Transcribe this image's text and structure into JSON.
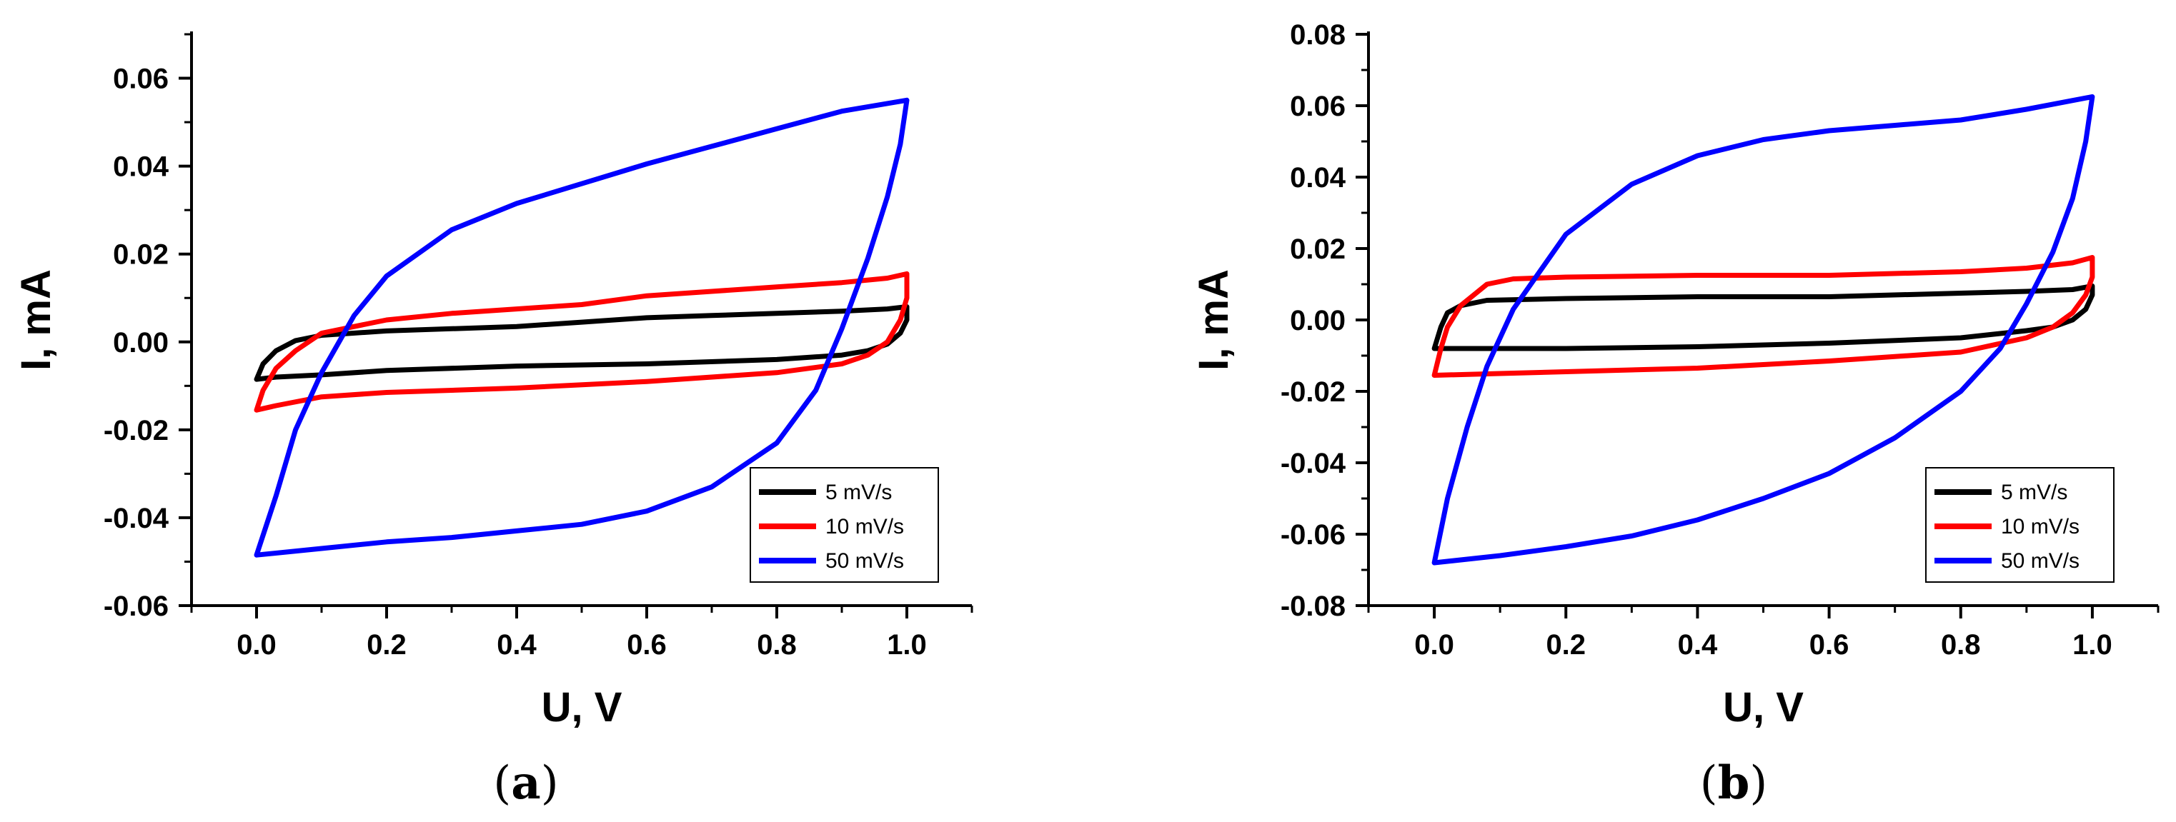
{
  "chart_data": [
    {
      "type": "line",
      "subplot": "a",
      "caption_prefix": "(",
      "caption_letter": "a",
      "caption_suffix": ")",
      "xlabel": "U, V",
      "ylabel": "I, mA",
      "xlim": [
        -0.1,
        1.1
      ],
      "ylim": [
        -0.06,
        0.07
      ],
      "x_ticks": [
        0.0,
        0.2,
        0.4,
        0.6,
        0.8,
        1.0
      ],
      "x_tick_labels": [
        "0.0",
        "0.2",
        "0.4",
        "0.6",
        "0.8",
        "1.0"
      ],
      "y_ticks": [
        -0.06,
        -0.04,
        -0.02,
        0.0,
        0.02,
        0.04,
        0.06
      ],
      "y_tick_labels": [
        "-0.06",
        "-0.04",
        "-0.02",
        "0.00",
        "0.02",
        "0.04",
        "0.06"
      ],
      "legend_position": "bottom-right",
      "series": [
        {
          "name": "5 mV/s",
          "color": "#000000",
          "points": [
            [
              0.0,
              -0.0085
            ],
            [
              0.01,
              -0.005
            ],
            [
              0.03,
              -0.002
            ],
            [
              0.06,
              0.0003
            ],
            [
              0.1,
              0.0015
            ],
            [
              0.2,
              0.0025
            ],
            [
              0.3,
              0.003
            ],
            [
              0.4,
              0.0035
            ],
            [
              0.5,
              0.0045
            ],
            [
              0.6,
              0.0055
            ],
            [
              0.7,
              0.006
            ],
            [
              0.8,
              0.0065
            ],
            [
              0.9,
              0.007
            ],
            [
              0.97,
              0.0075
            ],
            [
              1.0,
              0.008
            ],
            [
              1.0,
              0.005
            ],
            [
              0.99,
              0.002
            ],
            [
              0.97,
              -0.0005
            ],
            [
              0.94,
              -0.002
            ],
            [
              0.9,
              -0.003
            ],
            [
              0.8,
              -0.004
            ],
            [
              0.6,
              -0.005
            ],
            [
              0.4,
              -0.0055
            ],
            [
              0.2,
              -0.0065
            ],
            [
              0.1,
              -0.0075
            ],
            [
              0.03,
              -0.008
            ],
            [
              0.0,
              -0.0085
            ]
          ]
        },
        {
          "name": "10 mV/s",
          "color": "#ff0000",
          "points": [
            [
              0.0,
              -0.0155
            ],
            [
              0.01,
              -0.011
            ],
            [
              0.03,
              -0.006
            ],
            [
              0.06,
              -0.002
            ],
            [
              0.1,
              0.002
            ],
            [
              0.2,
              0.005
            ],
            [
              0.3,
              0.0065
            ],
            [
              0.4,
              0.0075
            ],
            [
              0.5,
              0.0085
            ],
            [
              0.6,
              0.0105
            ],
            [
              0.7,
              0.0115
            ],
            [
              0.8,
              0.0125
            ],
            [
              0.9,
              0.0135
            ],
            [
              0.97,
              0.0145
            ],
            [
              1.0,
              0.0155
            ],
            [
              1.0,
              0.01
            ],
            [
              0.99,
              0.005
            ],
            [
              0.97,
              0.0
            ],
            [
              0.94,
              -0.003
            ],
            [
              0.9,
              -0.005
            ],
            [
              0.8,
              -0.007
            ],
            [
              0.6,
              -0.009
            ],
            [
              0.4,
              -0.0105
            ],
            [
              0.2,
              -0.0115
            ],
            [
              0.1,
              -0.0125
            ],
            [
              0.03,
              -0.0145
            ],
            [
              0.0,
              -0.0155
            ]
          ]
        },
        {
          "name": "50 mV/s",
          "color": "#0000ff",
          "points": [
            [
              0.0,
              -0.0485
            ],
            [
              0.03,
              -0.035
            ],
            [
              0.06,
              -0.02
            ],
            [
              0.1,
              -0.007
            ],
            [
              0.15,
              0.006
            ],
            [
              0.2,
              0.015
            ],
            [
              0.3,
              0.0255
            ],
            [
              0.4,
              0.0315
            ],
            [
              0.5,
              0.036
            ],
            [
              0.6,
              0.0405
            ],
            [
              0.7,
              0.0445
            ],
            [
              0.8,
              0.0485
            ],
            [
              0.9,
              0.0525
            ],
            [
              1.0,
              0.055
            ],
            [
              0.99,
              0.045
            ],
            [
              0.97,
              0.033
            ],
            [
              0.94,
              0.019
            ],
            [
              0.9,
              0.003
            ],
            [
              0.86,
              -0.011
            ],
            [
              0.8,
              -0.023
            ],
            [
              0.7,
              -0.033
            ],
            [
              0.6,
              -0.0385
            ],
            [
              0.5,
              -0.0415
            ],
            [
              0.4,
              -0.043
            ],
            [
              0.3,
              -0.0445
            ],
            [
              0.2,
              -0.0455
            ],
            [
              0.1,
              -0.047
            ],
            [
              0.0,
              -0.0485
            ]
          ]
        }
      ]
    },
    {
      "type": "line",
      "subplot": "b",
      "caption_prefix": "(",
      "caption_letter": "b",
      "caption_suffix": ")",
      "xlabel": "U, V",
      "ylabel": "I, mA",
      "xlim": [
        -0.1,
        1.1
      ],
      "ylim": [
        -0.08,
        0.08
      ],
      "x_ticks": [
        0.0,
        0.2,
        0.4,
        0.6,
        0.8,
        1.0
      ],
      "x_tick_labels": [
        "0.0",
        "0.2",
        "0.4",
        "0.6",
        "0.8",
        "1.0"
      ],
      "y_ticks": [
        -0.08,
        -0.06,
        -0.04,
        -0.02,
        0.0,
        0.02,
        0.04,
        0.06,
        0.08
      ],
      "y_tick_labels": [
        "-0.08",
        "-0.06",
        "-0.04",
        "-0.02",
        "0.00",
        "0.02",
        "0.04",
        "0.06",
        "0.08"
      ],
      "legend_position": "bottom-right",
      "series": [
        {
          "name": "5 mV/s",
          "color": "#000000",
          "points": [
            [
              0.0,
              -0.008
            ],
            [
              0.01,
              -0.002
            ],
            [
              0.02,
              0.002
            ],
            [
              0.04,
              0.004
            ],
            [
              0.08,
              0.0055
            ],
            [
              0.2,
              0.006
            ],
            [
              0.4,
              0.0065
            ],
            [
              0.6,
              0.0065
            ],
            [
              0.8,
              0.0075
            ],
            [
              0.9,
              0.008
            ],
            [
              0.97,
              0.0085
            ],
            [
              1.0,
              0.0095
            ],
            [
              1.0,
              0.007
            ],
            [
              0.99,
              0.003
            ],
            [
              0.97,
              0.0
            ],
            [
              0.94,
              -0.002
            ],
            [
              0.9,
              -0.003
            ],
            [
              0.8,
              -0.005
            ],
            [
              0.6,
              -0.0065
            ],
            [
              0.4,
              -0.0075
            ],
            [
              0.2,
              -0.008
            ],
            [
              0.1,
              -0.008
            ],
            [
              0.0,
              -0.008
            ]
          ]
        },
        {
          "name": "10 mV/s",
          "color": "#ff0000",
          "points": [
            [
              0.0,
              -0.0155
            ],
            [
              0.01,
              -0.008
            ],
            [
              0.02,
              -0.002
            ],
            [
              0.04,
              0.004
            ],
            [
              0.08,
              0.01
            ],
            [
              0.12,
              0.0115
            ],
            [
              0.2,
              0.012
            ],
            [
              0.4,
              0.0125
            ],
            [
              0.6,
              0.0125
            ],
            [
              0.8,
              0.0135
            ],
            [
              0.9,
              0.0145
            ],
            [
              0.97,
              0.016
            ],
            [
              1.0,
              0.0175
            ],
            [
              1.0,
              0.012
            ],
            [
              0.99,
              0.007
            ],
            [
              0.97,
              0.002
            ],
            [
              0.94,
              -0.002
            ],
            [
              0.9,
              -0.005
            ],
            [
              0.8,
              -0.009
            ],
            [
              0.6,
              -0.0115
            ],
            [
              0.4,
              -0.0135
            ],
            [
              0.2,
              -0.0145
            ],
            [
              0.1,
              -0.015
            ],
            [
              0.0,
              -0.0155
            ]
          ]
        },
        {
          "name": "50 mV/s",
          "color": "#0000ff",
          "points": [
            [
              0.0,
              -0.068
            ],
            [
              0.02,
              -0.05
            ],
            [
              0.05,
              -0.03
            ],
            [
              0.08,
              -0.013
            ],
            [
              0.12,
              0.003
            ],
            [
              0.2,
              0.024
            ],
            [
              0.3,
              0.038
            ],
            [
              0.4,
              0.046
            ],
            [
              0.5,
              0.0505
            ],
            [
              0.6,
              0.053
            ],
            [
              0.7,
              0.0545
            ],
            [
              0.8,
              0.056
            ],
            [
              0.9,
              0.059
            ],
            [
              1.0,
              0.0625
            ],
            [
              0.99,
              0.05
            ],
            [
              0.97,
              0.034
            ],
            [
              0.94,
              0.019
            ],
            [
              0.9,
              0.0045
            ],
            [
              0.86,
              -0.008
            ],
            [
              0.8,
              -0.02
            ],
            [
              0.7,
              -0.033
            ],
            [
              0.6,
              -0.043
            ],
            [
              0.5,
              -0.05
            ],
            [
              0.4,
              -0.056
            ],
            [
              0.3,
              -0.0605
            ],
            [
              0.2,
              -0.0635
            ],
            [
              0.1,
              -0.066
            ],
            [
              0.0,
              -0.068
            ]
          ]
        }
      ]
    }
  ]
}
